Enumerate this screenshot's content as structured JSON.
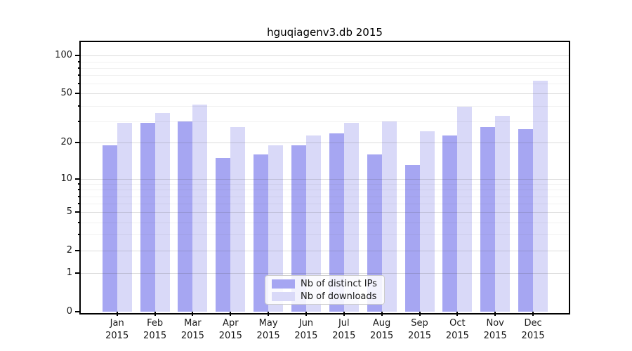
{
  "chart_data": {
    "type": "bar",
    "title": "hguqiagenv3.db 2015",
    "categories": [
      "Jan",
      "Feb",
      "Mar",
      "Apr",
      "May",
      "Jun",
      "Jul",
      "Aug",
      "Sep",
      "Oct",
      "Nov",
      "Dec"
    ],
    "x_year": "2015",
    "series": [
      {
        "name": "Nb of distinct IPs",
        "color": "#a6a6f2",
        "values": [
          19,
          29,
          30,
          15,
          16,
          19,
          24,
          16,
          13,
          23,
          27,
          26
        ]
      },
      {
        "name": "Nb of downloads",
        "color": "#d9d9f8",
        "values": [
          29,
          35,
          41,
          27,
          19,
          23,
          29,
          30,
          25,
          39,
          33,
          63
        ]
      }
    ],
    "y_axis": {
      "scale": "log(1+x)",
      "ticks": [
        0,
        1,
        2,
        5,
        10,
        20,
        50,
        100
      ],
      "minor_ticks": [
        3,
        4,
        6,
        7,
        8,
        9,
        30,
        40,
        60,
        70,
        80,
        90
      ],
      "ylim": [
        0,
        128
      ]
    },
    "xlabel": "",
    "ylabel": "",
    "legend": {
      "position": "lower center"
    },
    "layout": {
      "grid": true,
      "grid_major_color": "#d6d6d6",
      "grid_minor_color": "#eeeeee",
      "axis_color": "#000000",
      "text_color": "#1a1a1a",
      "background": "#ffffff"
    }
  }
}
